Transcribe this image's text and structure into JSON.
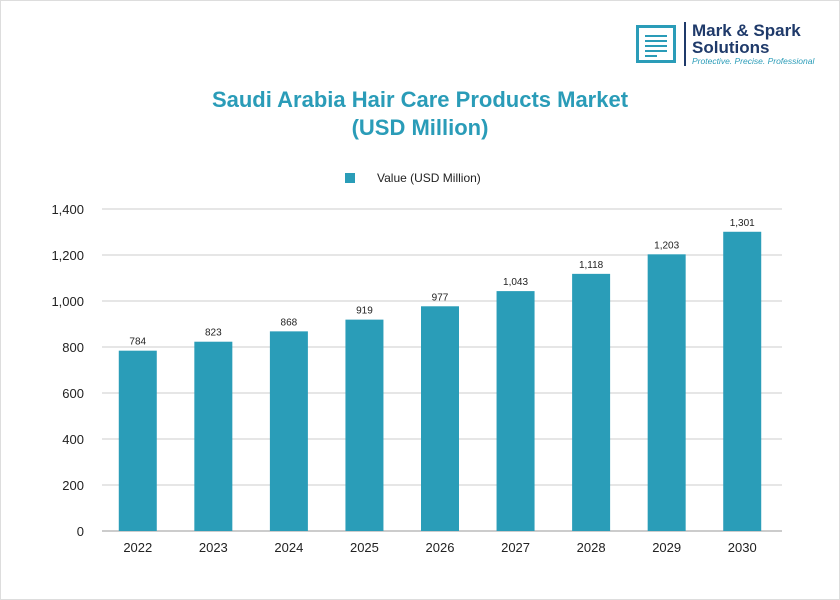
{
  "logo": {
    "name_line1": "Mark & Spark",
    "name_line2": "Solutions",
    "tagline": "Protective. Precise. Professional"
  },
  "chart_data": {
    "type": "bar",
    "title_line1": "Saudi Arabia Hair Care Products Market",
    "title_line2": "(USD Million)",
    "categories": [
      "2022",
      "2023",
      "2024",
      "2025",
      "2026",
      "2027",
      "2028",
      "2029",
      "2030"
    ],
    "series": [
      {
        "name": "Value (USD Million)",
        "values": [
          784,
          823,
          868,
          919,
          977,
          1043,
          1118,
          1203,
          1301
        ],
        "labels": [
          "784",
          "823",
          "868",
          "919",
          "977",
          "1,043",
          "1,118",
          "1,203",
          "1,301"
        ]
      }
    ],
    "ylim": [
      0,
      1400
    ],
    "yticks": [
      "0",
      "200",
      "400",
      "600",
      "800",
      "1,000",
      "1,200",
      "1,400"
    ],
    "grid": true,
    "legend": "top",
    "bar_color": "#2a9db8",
    "title_color": "#2a9cb8"
  }
}
